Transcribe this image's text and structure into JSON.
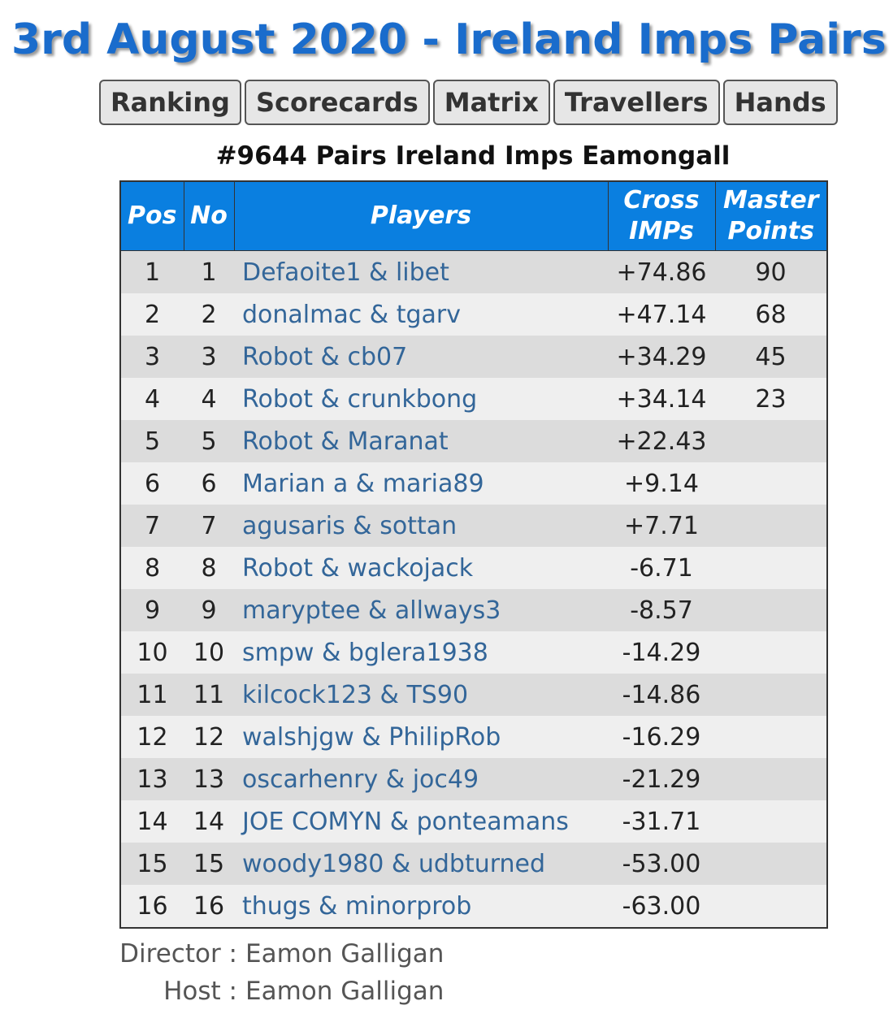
{
  "header": {
    "title": "3rd August 2020 - Ireland Imps Pairs"
  },
  "nav": [
    "Ranking",
    "Scorecards",
    "Matrix",
    "Travellers",
    "Hands"
  ],
  "table": {
    "caption": "#9644 Pairs Ireland Imps Eamongall",
    "columns": [
      "Pos",
      "No",
      "Players",
      "Cross IMPs",
      "Master Points"
    ],
    "rows": [
      [
        "1",
        "1",
        "Defaoite1 & libet",
        "+74.86",
        "90"
      ],
      [
        "2",
        "2",
        "donalmac & tgarv",
        "+47.14",
        "68"
      ],
      [
        "3",
        "3",
        "Robot & cb07",
        "+34.29",
        "45"
      ],
      [
        "4",
        "4",
        "Robot & crunkbong",
        "+34.14",
        "23"
      ],
      [
        "5",
        "5",
        "Robot & Maranat",
        "+22.43"
      ],
      [
        "6",
        "6",
        "Marian a & maria89",
        "+9.14"
      ],
      [
        "7",
        "7",
        "agusaris & sottan",
        "+7.71"
      ],
      [
        "8",
        "8",
        "Robot & wackojack",
        "-6.71"
      ],
      [
        "9",
        "9",
        "maryptee & allways3",
        "-8.57"
      ],
      [
        "10",
        "10",
        "smpw & bglera1938",
        "-14.29"
      ],
      [
        "11",
        "11",
        "kilcock123 & TS90",
        "-14.86"
      ],
      [
        "12",
        "12",
        "walshjgw & PhilipRob",
        "-16.29"
      ],
      [
        "13",
        "13",
        "oscarhenry & joc49",
        "-21.29"
      ],
      [
        "14",
        "14",
        "JOE COMYN & ponteamans",
        "-31.71"
      ],
      [
        "15",
        "15",
        "woody1980 & udbturned",
        "-53.00"
      ],
      [
        "16",
        "16",
        "thugs & minorprob",
        "-63.00"
      ]
    ]
  },
  "footer": [
    {
      "label": "Director :",
      "name": "Eamon Galligan"
    },
    {
      "label": "Host :",
      "name": "Eamon Galligan"
    }
  ]
}
